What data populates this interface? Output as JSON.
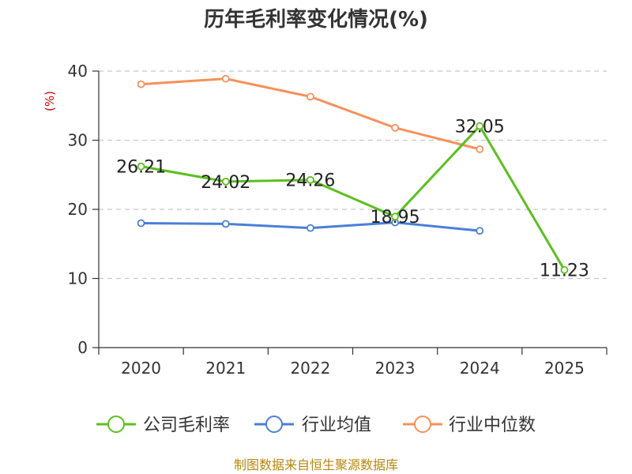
{
  "title": "历年毛利率变化情况(%)",
  "unit_label": "(%)",
  "source": "制图数据来自恒生聚源数据库",
  "chart_data": {
    "type": "line",
    "title": "历年毛利率变化情况(%)",
    "ylabel": "(%)",
    "xlabel": "",
    "categories": [
      "2020",
      "2021",
      "2022",
      "2023",
      "2024",
      "2025"
    ],
    "ylim": [
      0,
      40
    ],
    "yticks": [
      0,
      10,
      20,
      30,
      40
    ],
    "grid": true,
    "legend_position": "bottom",
    "series": [
      {
        "name": "公司毛利率",
        "color": "#5cbf1f",
        "values": [
          26.21,
          24.02,
          24.26,
          18.95,
          32.05,
          11.23
        ],
        "labels": [
          "26.21",
          "24.02",
          "24.26",
          "18.95",
          "32.05",
          "11.23"
        ]
      },
      {
        "name": "行业均值",
        "color": "#4a7fd6",
        "values": [
          18.0,
          17.9,
          17.3,
          18.1,
          16.9,
          null
        ]
      },
      {
        "name": "行业中位数",
        "color": "#f5915a",
        "values": [
          38.1,
          38.9,
          36.3,
          31.8,
          28.7,
          null
        ]
      }
    ]
  }
}
